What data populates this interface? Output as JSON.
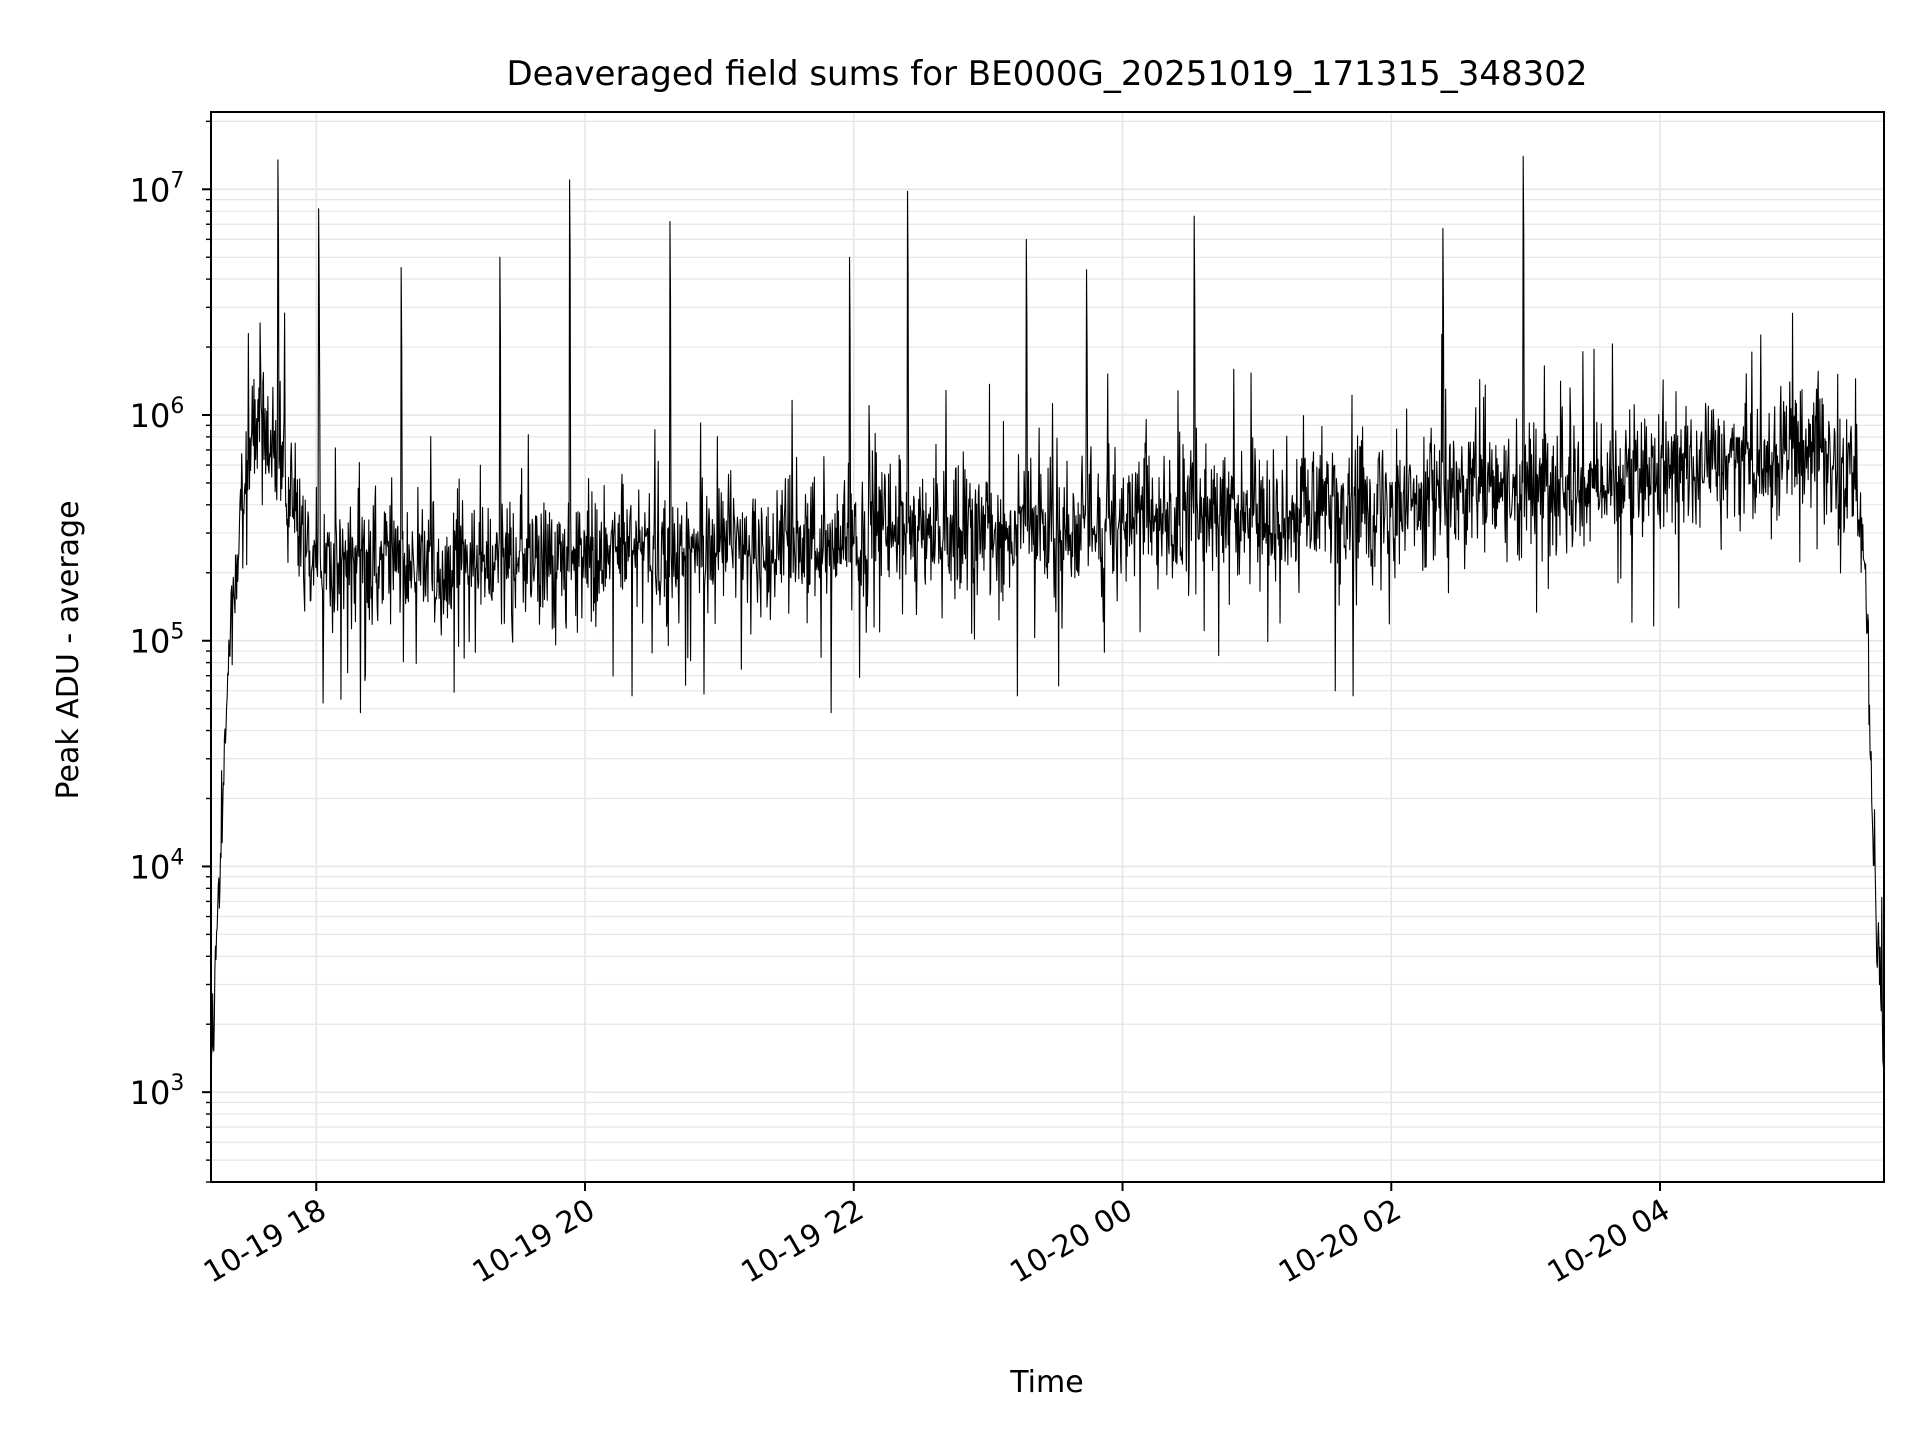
{
  "chart_data": {
    "type": "line",
    "title": "Deaveraged field sums for BE000G_20251019_171315_348302",
    "xlabel": "Time",
    "ylabel": "Peak ADU - average",
    "xscale": "time",
    "yscale": "log",
    "xlim": [
      "2025-10-19 17:13",
      "2025-10-20 05:40"
    ],
    "ylim": [
      400,
      22000000
    ],
    "x_ticks": [
      {
        "value": "2025-10-19 18:00",
        "label": "10-19 18"
      },
      {
        "value": "2025-10-19 20:00",
        "label": "10-19 20"
      },
      {
        "value": "2025-10-19 22:00",
        "label": "10-19 22"
      },
      {
        "value": "2025-10-20 00:00",
        "label": "10-20 00"
      },
      {
        "value": "2025-10-20 02:00",
        "label": "10-20 02"
      },
      {
        "value": "2025-10-20 04:00",
        "label": "10-20 04"
      }
    ],
    "y_ticks": [
      {
        "value": 1000,
        "base": "10",
        "exp": "3"
      },
      {
        "value": 10000,
        "base": "10",
        "exp": "4"
      },
      {
        "value": 100000,
        "base": "10",
        "exp": "5"
      },
      {
        "value": 1000000,
        "base": "10",
        "exp": "6"
      },
      {
        "value": 10000000,
        "base": "10",
        "exp": "7"
      }
    ],
    "grid": true,
    "line_color": "#000000",
    "grid_color": "#e6e6e6",
    "series": [
      {
        "spikes": [
          {
            "x": "2025-10-19 17:43",
            "y": 13500000
          },
          {
            "x": "2025-10-19 18:01",
            "y": 8200000
          },
          {
            "x": "2025-10-19 18:38",
            "y": 4500000
          },
          {
            "x": "2025-10-19 19:22",
            "y": 5000000
          },
          {
            "x": "2025-10-19 19:53",
            "y": 11000000
          },
          {
            "x": "2025-10-19 20:38",
            "y": 7200000
          },
          {
            "x": "2025-10-19 21:58",
            "y": 5000000
          },
          {
            "x": "2025-10-19 22:24",
            "y": 9800000
          },
          {
            "x": "2025-10-19 23:17",
            "y": 6000000
          },
          {
            "x": "2025-10-19 23:44",
            "y": 4400000
          },
          {
            "x": "2025-10-20 00:32",
            "y": 7600000
          },
          {
            "x": "2025-10-20 02:23",
            "y": 6700000
          },
          {
            "x": "2025-10-20 02:59",
            "y": 14000000
          }
        ],
        "dips": [
          {
            "x": "2025-10-19 18:03",
            "y": 53000
          },
          {
            "x": "2025-10-19 18:11",
            "y": 55000
          },
          {
            "x": "2025-10-19 20:21",
            "y": 57000
          },
          {
            "x": "2025-10-19 20:53",
            "y": 58000
          },
          {
            "x": "2025-10-19 21:50",
            "y": 48000
          },
          {
            "x": "2025-10-19 23:13",
            "y": 57000
          },
          {
            "x": "2025-10-20 01:35",
            "y": 60000
          },
          {
            "x": "2025-10-20 01:43",
            "y": 57000
          }
        ],
        "profile": [
          {
            "x": "2025-10-19 17:13",
            "y": 1000
          },
          {
            "x": "2025-10-19 17:15",
            "y": 4000
          },
          {
            "x": "2025-10-19 17:18",
            "y": 10000
          },
          {
            "x": "2025-10-19 17:20",
            "y": 80000
          },
          {
            "x": "2025-10-19 17:24",
            "y": 200000
          },
          {
            "x": "2025-10-19 17:28",
            "y": 500000
          },
          {
            "x": "2025-10-19 17:32",
            "y": 850000
          },
          {
            "x": "2025-10-19 17:40",
            "y": 700000
          },
          {
            "x": "2025-10-19 17:50",
            "y": 450000
          },
          {
            "x": "2025-10-19 18:00",
            "y": 230000
          },
          {
            "x": "2025-10-19 19:00",
            "y": 220000
          },
          {
            "x": "2025-10-19 20:00",
            "y": 240000
          },
          {
            "x": "2025-10-19 21:00",
            "y": 260000
          },
          {
            "x": "2025-10-19 22:00",
            "y": 290000
          },
          {
            "x": "2025-10-20 00:00",
            "y": 330000
          },
          {
            "x": "2025-10-20 02:00",
            "y": 420000
          },
          {
            "x": "2025-10-20 03:00",
            "y": 480000
          },
          {
            "x": "2025-10-20 04:00",
            "y": 560000
          },
          {
            "x": "2025-10-20 05:00",
            "y": 700000
          },
          {
            "x": "2025-10-20 05:28",
            "y": 600000
          },
          {
            "x": "2025-10-20 05:32",
            "y": 150000
          },
          {
            "x": "2025-10-20 05:35",
            "y": 15000
          },
          {
            "x": "2025-10-20 05:38",
            "y": 3000
          },
          {
            "x": "2025-10-20 05:40",
            "y": 1200
          }
        ]
      }
    ]
  }
}
